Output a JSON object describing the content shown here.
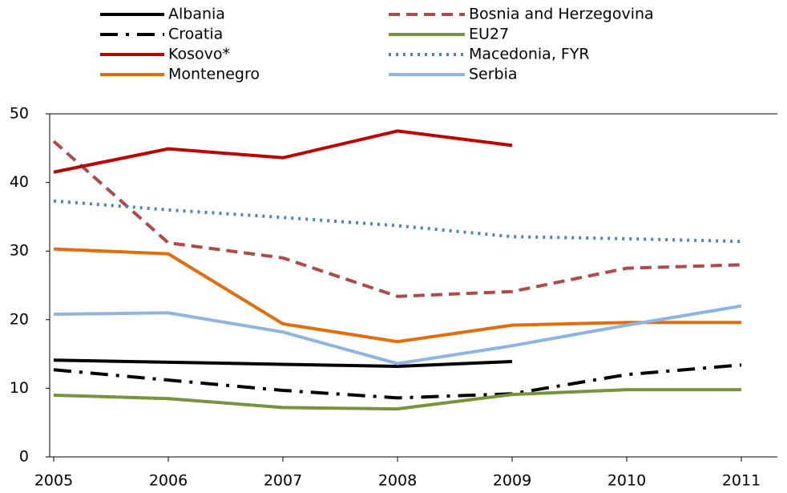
{
  "chart_data": {
    "type": "line",
    "categories": [
      "2005",
      "2006",
      "2007",
      "2008",
      "2009",
      "2010",
      "2011"
    ],
    "ylim": [
      0,
      50
    ],
    "yticks": [
      0,
      10,
      20,
      30,
      40,
      50
    ],
    "grid": false,
    "legend": "top",
    "series": [
      {
        "name": "Albania",
        "color": "#000000",
        "style": "solid",
        "values": [
          14.1,
          13.8,
          13.5,
          13.2,
          13.9,
          null,
          null
        ]
      },
      {
        "name": "Bosnia and Herzegovina",
        "color": "#b04a4a",
        "style": "dashed",
        "values": [
          46,
          31.2,
          29.0,
          23.4,
          24.1,
          27.5,
          28.0
        ]
      },
      {
        "name": "Croatia",
        "color": "#000000",
        "style": "dashdot",
        "values": [
          12.7,
          11.2,
          9.7,
          8.6,
          9.2,
          12.0,
          13.4
        ]
      },
      {
        "name": "EU27",
        "color": "#77933c",
        "style": "solid",
        "values": [
          9.0,
          8.5,
          7.2,
          7.0,
          9.1,
          9.8,
          9.8
        ]
      },
      {
        "name": "Kosovo*",
        "color": "#c00000",
        "style": "solid",
        "values": [
          41.5,
          44.9,
          43.6,
          47.5,
          45.4,
          null,
          null
        ]
      },
      {
        "name": "Macedonia, FYR",
        "color": "#4f81bd",
        "style": "dotted",
        "values": [
          37.3,
          36.0,
          34.9,
          33.7,
          32.1,
          31.8,
          31.4
        ]
      },
      {
        "name": "Montenegro",
        "color": "#e46c0a",
        "style": "solid",
        "values": [
          30.3,
          29.6,
          19.4,
          16.8,
          19.2,
          19.6,
          19.6
        ]
      },
      {
        "name": "Serbia",
        "color": "#8eb4e3",
        "style": "solid",
        "values": [
          20.8,
          21.0,
          18.2,
          13.6,
          16.2,
          19.2,
          22.0
        ]
      }
    ]
  }
}
